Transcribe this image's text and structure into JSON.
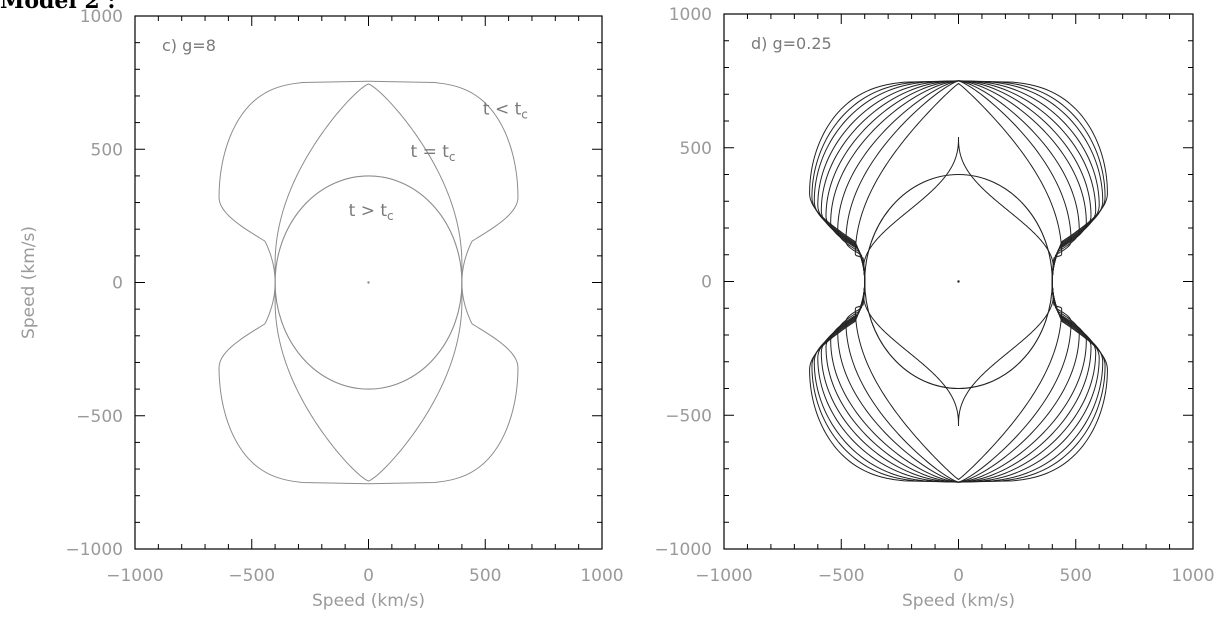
{
  "header_fragment": "Model 2 :",
  "chart_data": [
    {
      "type": "line",
      "panel_label": "c) g=8",
      "xlabel": "Speed (km/s)",
      "ylabel": "Speed (km/s)",
      "xlim": [
        -1000,
        1000
      ],
      "ylim": [
        -1000,
        1000
      ],
      "x_ticks": [
        -1000,
        -500,
        0,
        500,
        1000
      ],
      "y_ticks": [
        -1000,
        -500,
        0,
        500,
        1000
      ],
      "x_tick_labels": [
        "−1000",
        "−500",
        "0",
        "500",
        "1000"
      ],
      "y_tick_labels": [
        "−1000",
        "−500",
        "0",
        "500",
        "1000"
      ],
      "grid": false,
      "line_color": "#8c8c8c",
      "annotations": [
        {
          "text": "t < t",
          "sub": "c",
          "x": 490,
          "y": 630
        },
        {
          "text": "t = t",
          "sub": "c",
          "x": 180,
          "y": 470
        },
        {
          "text": "t > t",
          "sub": "c",
          "x": -85,
          "y": 250
        }
      ],
      "curves": [
        {
          "kind": "peanut",
          "x_waist": 400,
          "x_max": 640,
          "y_top": 755,
          "y_at_max": 320,
          "y_lobe": 155,
          "y_hi": 745,
          "smooth": 1.5,
          "pk": 0.3
        },
        {
          "kind": "peanut",
          "x_waist": 400,
          "x_max": 400,
          "y_top": 745,
          "y_at_max": 70,
          "y_lobe": 70,
          "y_hi": 745,
          "smooth": 1.5,
          "pk": 1.2
        },
        {
          "kind": "circle",
          "r": 400
        }
      ],
      "center_dot": [
        0,
        0
      ]
    },
    {
      "type": "line",
      "panel_label": "d) g=0.25",
      "xlabel": "Speed (km/s)",
      "ylabel": "",
      "xlim": [
        -1000,
        1000
      ],
      "ylim": [
        -1000,
        1000
      ],
      "x_ticks": [
        -1000,
        -500,
        0,
        500,
        1000
      ],
      "y_ticks": [
        -1000,
        -500,
        0,
        500,
        1000
      ],
      "x_tick_labels": [
        "−1000",
        "−500",
        "0",
        "500",
        "1000"
      ],
      "y_tick_labels": [
        "−1000",
        "−500",
        "0",
        "500",
        "1000"
      ],
      "grid": false,
      "line_color": "#222222",
      "annotations": [],
      "curves": [
        {
          "kind": "peanut",
          "x_waist": 400,
          "x_max": 635,
          "y_top": 750,
          "y_at_max": 330,
          "y_lobe": 150,
          "y_hi": 745,
          "smooth": 1.2,
          "pk": 0.3
        },
        {
          "kind": "peanut",
          "x_waist": 400,
          "x_max": 625,
          "y_top": 750,
          "y_at_max": 315,
          "y_lobe": 145,
          "y_hi": 745,
          "smooth": 1.2,
          "pk": 0.36
        },
        {
          "kind": "peanut",
          "x_waist": 400,
          "x_max": 615,
          "y_top": 750,
          "y_at_max": 300,
          "y_lobe": 140,
          "y_hi": 745,
          "smooth": 1.2,
          "pk": 0.42
        },
        {
          "kind": "peanut",
          "x_waist": 400,
          "x_max": 600,
          "y_top": 750,
          "y_at_max": 285,
          "y_lobe": 135,
          "y_hi": 745,
          "smooth": 1.2,
          "pk": 0.5
        },
        {
          "kind": "peanut",
          "x_waist": 400,
          "x_max": 585,
          "y_top": 750,
          "y_at_max": 265,
          "y_lobe": 130,
          "y_hi": 745,
          "smooth": 1.2,
          "pk": 0.58
        },
        {
          "kind": "peanut",
          "x_waist": 400,
          "x_max": 565,
          "y_top": 750,
          "y_at_max": 245,
          "y_lobe": 125,
          "y_hi": 745,
          "smooth": 1.2,
          "pk": 0.66
        },
        {
          "kind": "peanut",
          "x_waist": 400,
          "x_max": 545,
          "y_top": 750,
          "y_at_max": 220,
          "y_lobe": 120,
          "y_hi": 745,
          "smooth": 1.2,
          "pk": 0.75
        },
        {
          "kind": "peanut",
          "x_waist": 400,
          "x_max": 515,
          "y_top": 750,
          "y_at_max": 190,
          "y_lobe": 110,
          "y_hi": 745,
          "smooth": 1.2,
          "pk": 0.85
        },
        {
          "kind": "peanut",
          "x_waist": 400,
          "x_max": 480,
          "y_top": 750,
          "y_at_max": 150,
          "y_lobe": 100,
          "y_hi": 745,
          "smooth": 1.2,
          "pk": 0.95
        },
        {
          "kind": "peanut",
          "x_waist": 400,
          "x_max": 440,
          "y_top": 740,
          "y_at_max": 100,
          "y_lobe": 90,
          "y_hi": 740,
          "smooth": 1.2,
          "pk": 1.1
        },
        {
          "kind": "peanut",
          "x_waist": 400,
          "x_max": 405,
          "y_top": 540,
          "y_at_max": 50,
          "y_lobe": 50,
          "y_hi": 540,
          "smooth": 1.2,
          "pk": 3.0
        },
        {
          "kind": "circle",
          "r": 400
        }
      ],
      "center_dot": [
        0,
        0
      ]
    }
  ]
}
